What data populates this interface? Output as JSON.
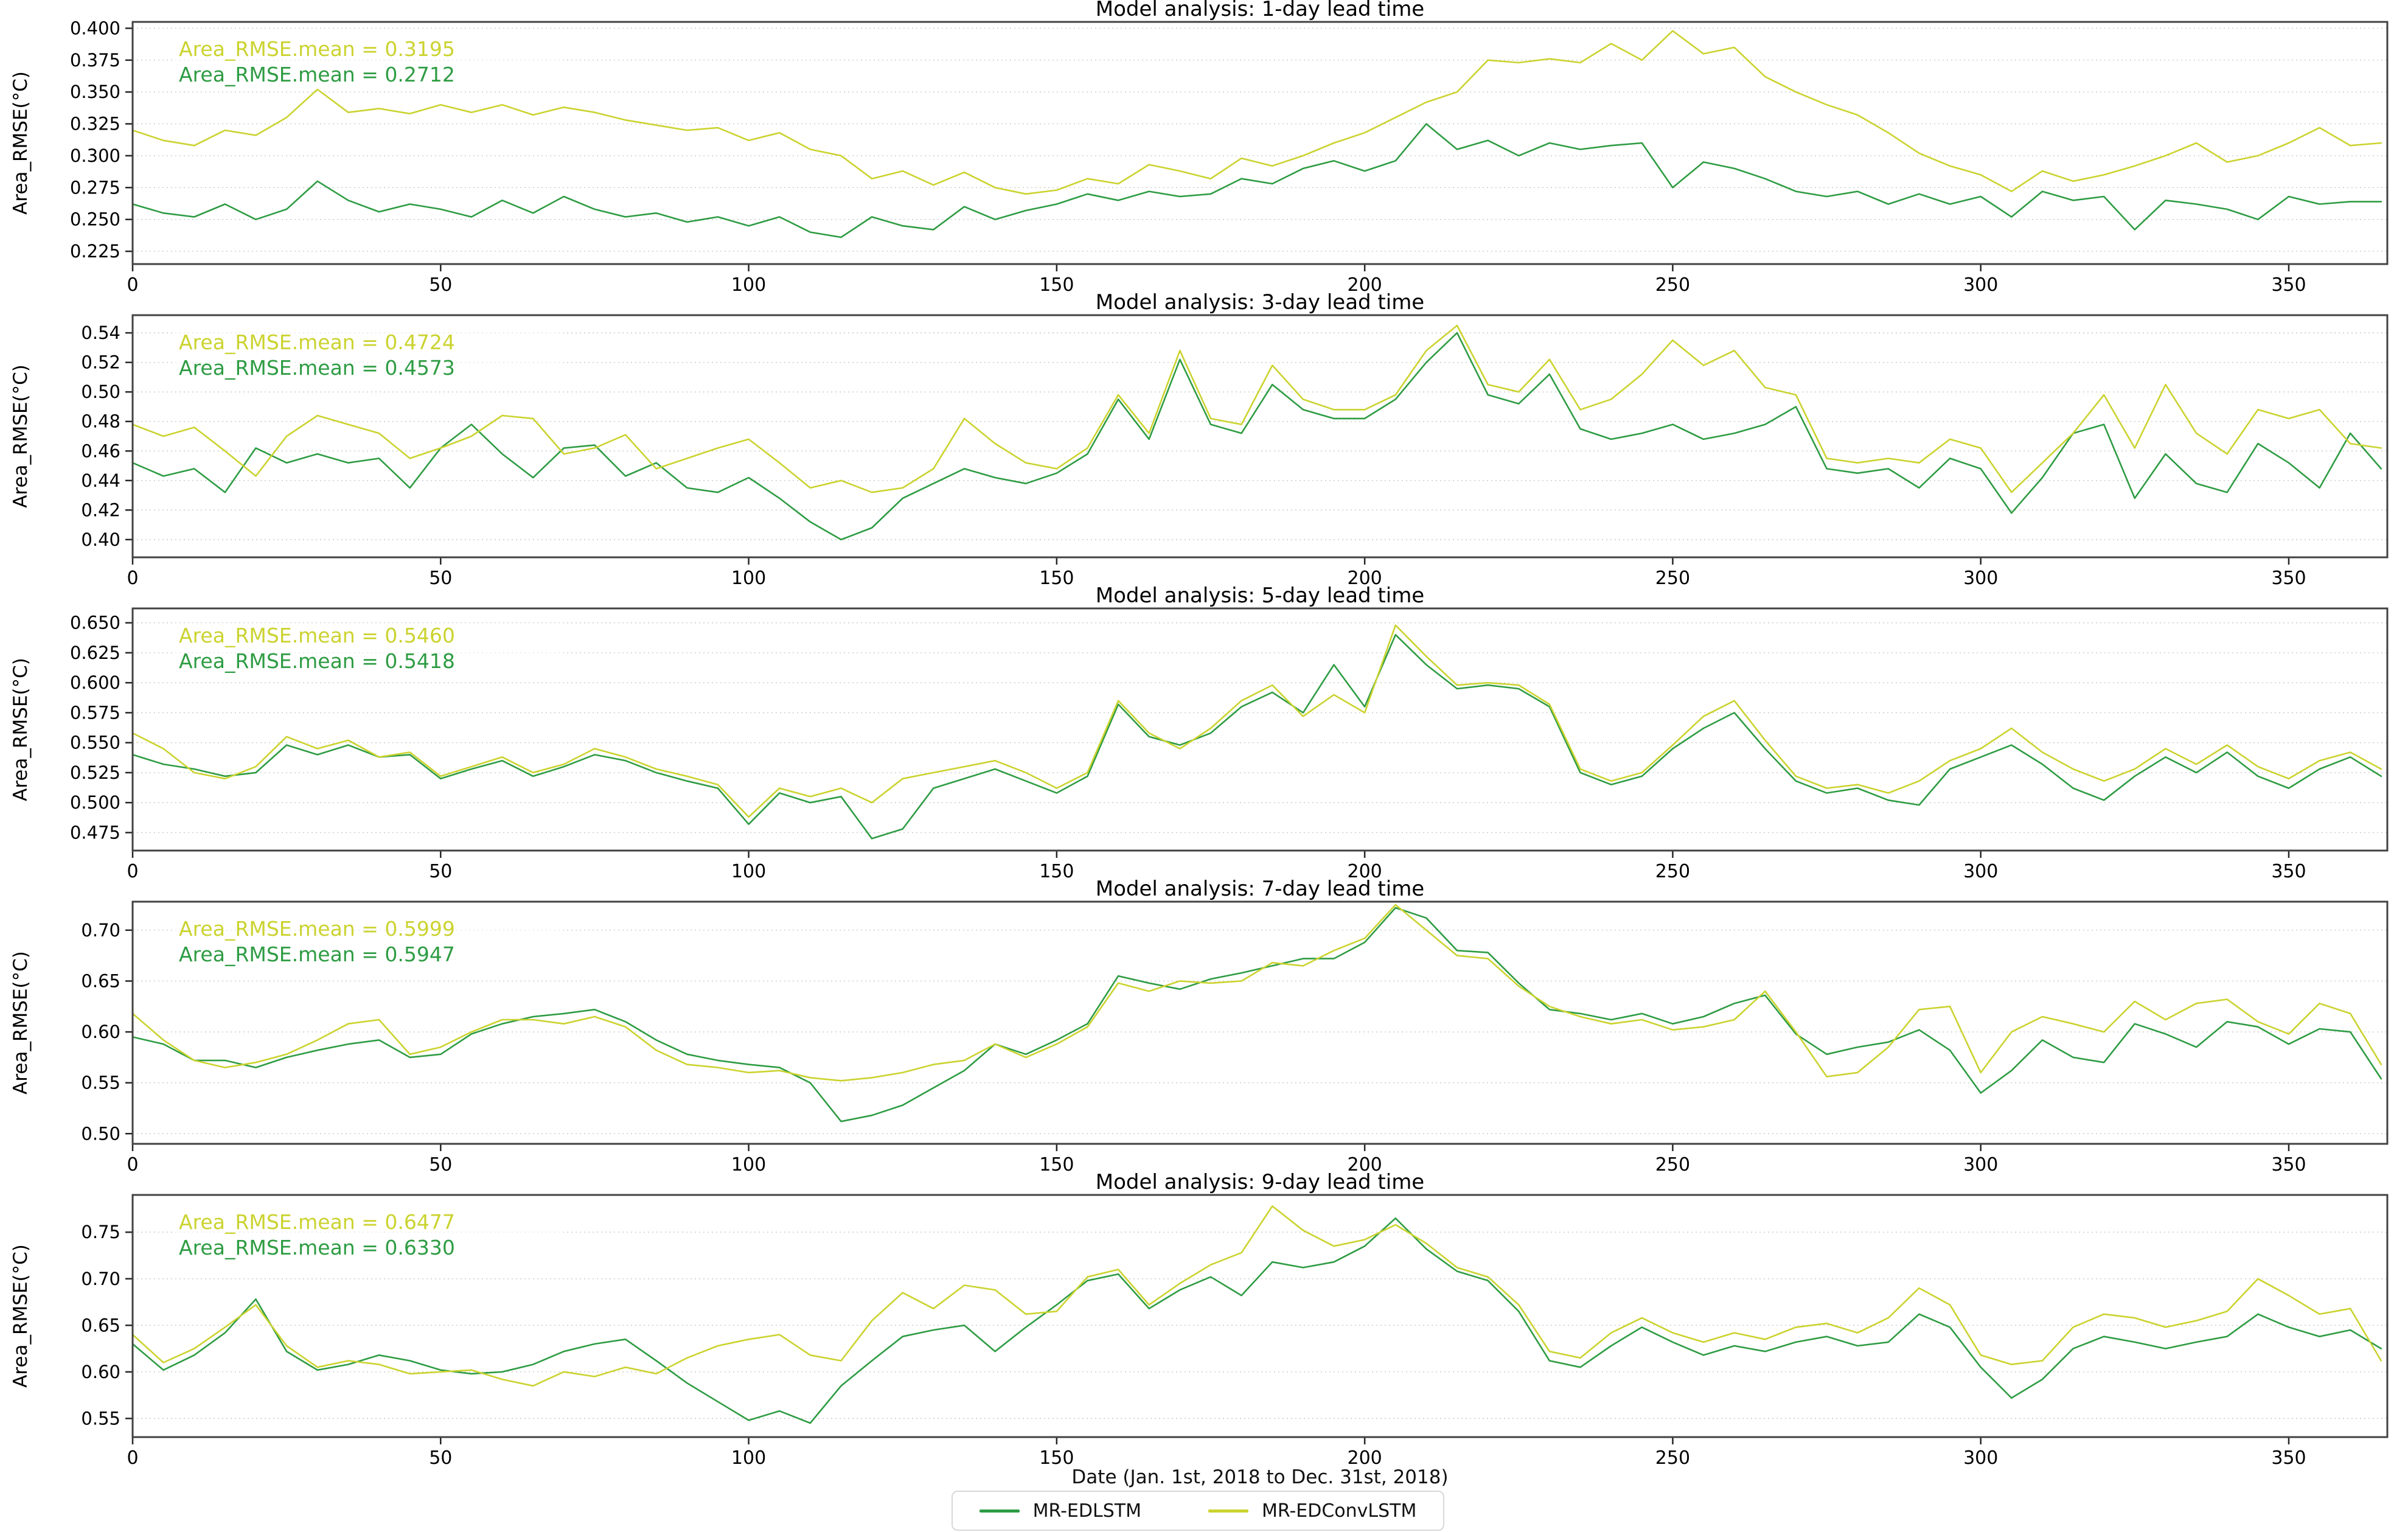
{
  "figure": {
    "xlabel": "Date (Jan. 1st, 2018 to Dec. 31st, 2018)",
    "xlim": [
      0,
      366
    ],
    "x_ticks": [
      0,
      50,
      100,
      150,
      200,
      250,
      300,
      350
    ],
    "grid": true,
    "legend_position": "bottom center",
    "colors": {
      "mr_edlstm": "#2e9c43",
      "mr_edconvlstm": "#cbd32f",
      "axis": "#424242",
      "gridline": "#c8c8c8",
      "text": "#111111"
    },
    "legend": [
      {
        "label": "MR-EDLSTM",
        "color_key": "mr_edlstm"
      },
      {
        "label": "MR-EDConvLSTM",
        "color_key": "mr_edconvlstm"
      }
    ]
  },
  "chart_data": [
    {
      "type": "line",
      "title": "Model analysis: 1-day lead time",
      "ylabel": "Area_RMSE(°C)",
      "ylim": [
        0.215,
        0.405
      ],
      "yticks": [
        0.225,
        0.25,
        0.275,
        0.3,
        0.325,
        0.35,
        0.375,
        0.4
      ],
      "ytick_labels": [
        "0.225",
        "0.250",
        "0.275",
        "0.300",
        "0.325",
        "0.350",
        "0.375",
        "0.400"
      ],
      "annotations": [
        {
          "text": "Area_RMSE.mean = 0.3195",
          "color_key": "mr_edconvlstm"
        },
        {
          "text": "Area_RMSE.mean = 0.2712",
          "color_key": "mr_edlstm"
        }
      ],
      "x_step": 5,
      "series": [
        {
          "name": "MR-EDLSTM",
          "color_key": "mr_edlstm",
          "values": [
            0.262,
            0.255,
            0.252,
            0.262,
            0.25,
            0.258,
            0.28,
            0.265,
            0.256,
            0.262,
            0.258,
            0.252,
            0.265,
            0.255,
            0.268,
            0.258,
            0.252,
            0.255,
            0.248,
            0.252,
            0.245,
            0.252,
            0.24,
            0.236,
            0.252,
            0.245,
            0.242,
            0.26,
            0.25,
            0.257,
            0.262,
            0.27,
            0.265,
            0.272,
            0.268,
            0.27,
            0.282,
            0.278,
            0.29,
            0.296,
            0.288,
            0.296,
            0.325,
            0.305,
            0.312,
            0.3,
            0.31,
            0.305,
            0.308,
            0.31,
            0.275,
            0.295,
            0.29,
            0.282,
            0.272,
            0.268,
            0.272,
            0.262,
            0.27,
            0.262,
            0.268,
            0.252,
            0.272,
            0.265,
            0.268,
            0.242,
            0.265,
            0.262,
            0.258,
            0.25,
            0.268,
            0.262,
            0.264,
            0.264
          ]
        },
        {
          "name": "MR-EDConvLSTM",
          "color_key": "mr_edconvlstm",
          "values": [
            0.32,
            0.312,
            0.308,
            0.32,
            0.316,
            0.33,
            0.352,
            0.334,
            0.337,
            0.333,
            0.34,
            0.334,
            0.34,
            0.332,
            0.338,
            0.334,
            0.328,
            0.324,
            0.32,
            0.322,
            0.312,
            0.318,
            0.305,
            0.3,
            0.282,
            0.288,
            0.277,
            0.287,
            0.275,
            0.27,
            0.273,
            0.282,
            0.278,
            0.293,
            0.288,
            0.282,
            0.298,
            0.292,
            0.3,
            0.31,
            0.318,
            0.33,
            0.342,
            0.35,
            0.375,
            0.373,
            0.376,
            0.373,
            0.388,
            0.375,
            0.398,
            0.38,
            0.385,
            0.362,
            0.35,
            0.34,
            0.332,
            0.318,
            0.302,
            0.292,
            0.285,
            0.272,
            0.288,
            0.28,
            0.285,
            0.292,
            0.3,
            0.31,
            0.295,
            0.3,
            0.31,
            0.322,
            0.308,
            0.31
          ]
        }
      ]
    },
    {
      "type": "line",
      "title": "Model analysis: 3-day lead time",
      "ylabel": "Area_RMSE(°C)",
      "ylim": [
        0.388,
        0.552
      ],
      "yticks": [
        0.4,
        0.42,
        0.44,
        0.46,
        0.48,
        0.5,
        0.52,
        0.54
      ],
      "ytick_labels": [
        "0.40",
        "0.42",
        "0.44",
        "0.46",
        "0.48",
        "0.50",
        "0.52",
        "0.54"
      ],
      "annotations": [
        {
          "text": "Area_RMSE.mean = 0.4724",
          "color_key": "mr_edconvlstm"
        },
        {
          "text": "Area_RMSE.mean = 0.4573",
          "color_key": "mr_edlstm"
        }
      ],
      "x_step": 5,
      "series": [
        {
          "name": "MR-EDLSTM",
          "color_key": "mr_edlstm",
          "values": [
            0.452,
            0.443,
            0.448,
            0.432,
            0.462,
            0.452,
            0.458,
            0.452,
            0.455,
            0.435,
            0.462,
            0.478,
            0.458,
            0.442,
            0.462,
            0.464,
            0.443,
            0.452,
            0.435,
            0.432,
            0.442,
            0.428,
            0.412,
            0.4,
            0.408,
            0.428,
            0.438,
            0.448,
            0.442,
            0.438,
            0.445,
            0.458,
            0.495,
            0.468,
            0.522,
            0.478,
            0.472,
            0.505,
            0.488,
            0.482,
            0.482,
            0.495,
            0.52,
            0.54,
            0.498,
            0.492,
            0.512,
            0.475,
            0.468,
            0.472,
            0.478,
            0.468,
            0.472,
            0.478,
            0.49,
            0.448,
            0.445,
            0.448,
            0.435,
            0.455,
            0.448,
            0.418,
            0.442,
            0.472,
            0.478,
            0.428,
            0.458,
            0.438,
            0.432,
            0.465,
            0.452,
            0.435,
            0.472,
            0.448
          ]
        },
        {
          "name": "MR-EDConvLSTM",
          "color_key": "mr_edconvlstm",
          "values": [
            0.478,
            0.47,
            0.476,
            0.46,
            0.443,
            0.47,
            0.484,
            0.478,
            0.472,
            0.455,
            0.462,
            0.47,
            0.484,
            0.482,
            0.458,
            0.462,
            0.471,
            0.448,
            0.455,
            0.462,
            0.468,
            0.452,
            0.435,
            0.44,
            0.432,
            0.435,
            0.448,
            0.482,
            0.465,
            0.452,
            0.448,
            0.462,
            0.498,
            0.472,
            0.528,
            0.482,
            0.478,
            0.518,
            0.495,
            0.488,
            0.488,
            0.498,
            0.528,
            0.545,
            0.505,
            0.5,
            0.522,
            0.488,
            0.495,
            0.512,
            0.535,
            0.518,
            0.528,
            0.503,
            0.498,
            0.455,
            0.452,
            0.455,
            0.452,
            0.468,
            0.462,
            0.432,
            0.452,
            0.472,
            0.498,
            0.462,
            0.505,
            0.472,
            0.458,
            0.488,
            0.482,
            0.488,
            0.465,
            0.462
          ]
        }
      ]
    },
    {
      "type": "line",
      "title": "Model analysis: 5-day lead time",
      "ylabel": "Area_RMSE(°C)",
      "ylim": [
        0.46,
        0.662
      ],
      "yticks": [
        0.475,
        0.5,
        0.525,
        0.55,
        0.575,
        0.6,
        0.625,
        0.65
      ],
      "ytick_labels": [
        "0.475",
        "0.500",
        "0.525",
        "0.550",
        "0.575",
        "0.600",
        "0.625",
        "0.650"
      ],
      "annotations": [
        {
          "text": "Area_RMSE.mean = 0.5460",
          "color_key": "mr_edconvlstm"
        },
        {
          "text": "Area_RMSE.mean = 0.5418",
          "color_key": "mr_edlstm"
        }
      ],
      "x_step": 5,
      "series": [
        {
          "name": "MR-EDLSTM",
          "color_key": "mr_edlstm",
          "values": [
            0.54,
            0.532,
            0.528,
            0.522,
            0.525,
            0.548,
            0.54,
            0.548,
            0.538,
            0.54,
            0.52,
            0.528,
            0.535,
            0.522,
            0.53,
            0.54,
            0.535,
            0.525,
            0.518,
            0.512,
            0.482,
            0.508,
            0.5,
            0.505,
            0.47,
            0.478,
            0.512,
            0.52,
            0.528,
            0.518,
            0.508,
            0.522,
            0.582,
            0.555,
            0.548,
            0.558,
            0.58,
            0.592,
            0.575,
            0.615,
            0.58,
            0.64,
            0.615,
            0.595,
            0.598,
            0.595,
            0.58,
            0.525,
            0.515,
            0.522,
            0.545,
            0.562,
            0.575,
            0.545,
            0.518,
            0.508,
            0.512,
            0.502,
            0.498,
            0.528,
            0.538,
            0.548,
            0.532,
            0.512,
            0.502,
            0.522,
            0.538,
            0.525,
            0.542,
            0.522,
            0.512,
            0.528,
            0.538,
            0.522
          ]
        },
        {
          "name": "MR-EDConvLSTM",
          "color_key": "mr_edconvlstm",
          "values": [
            0.558,
            0.545,
            0.525,
            0.52,
            0.53,
            0.555,
            0.545,
            0.552,
            0.538,
            0.542,
            0.522,
            0.53,
            0.538,
            0.525,
            0.532,
            0.545,
            0.538,
            0.528,
            0.522,
            0.515,
            0.488,
            0.512,
            0.505,
            0.512,
            0.5,
            0.52,
            0.525,
            0.53,
            0.535,
            0.525,
            0.512,
            0.525,
            0.585,
            0.558,
            0.545,
            0.562,
            0.585,
            0.598,
            0.572,
            0.59,
            0.575,
            0.648,
            0.622,
            0.598,
            0.6,
            0.598,
            0.582,
            0.528,
            0.518,
            0.525,
            0.548,
            0.572,
            0.585,
            0.552,
            0.522,
            0.512,
            0.515,
            0.508,
            0.518,
            0.535,
            0.545,
            0.562,
            0.542,
            0.528,
            0.518,
            0.528,
            0.545,
            0.532,
            0.548,
            0.53,
            0.52,
            0.535,
            0.542,
            0.528
          ]
        }
      ]
    },
    {
      "type": "line",
      "title": "Model analysis: 7-day lead time",
      "ylabel": "Area_RMSE(°C)",
      "ylim": [
        0.49,
        0.728
      ],
      "yticks": [
        0.5,
        0.55,
        0.6,
        0.65,
        0.7
      ],
      "ytick_labels": [
        "0.50",
        "0.55",
        "0.60",
        "0.65",
        "0.70"
      ],
      "annotations": [
        {
          "text": "Area_RMSE.mean = 0.5999",
          "color_key": "mr_edconvlstm"
        },
        {
          "text": "Area_RMSE.mean = 0.5947",
          "color_key": "mr_edlstm"
        }
      ],
      "x_step": 5,
      "series": [
        {
          "name": "MR-EDLSTM",
          "color_key": "mr_edlstm",
          "values": [
            0.595,
            0.588,
            0.572,
            0.572,
            0.565,
            0.575,
            0.582,
            0.588,
            0.592,
            0.575,
            0.578,
            0.598,
            0.608,
            0.615,
            0.618,
            0.622,
            0.61,
            0.592,
            0.578,
            0.572,
            0.568,
            0.565,
            0.55,
            0.512,
            0.518,
            0.528,
            0.545,
            0.562,
            0.588,
            0.578,
            0.592,
            0.608,
            0.655,
            0.648,
            0.642,
            0.652,
            0.658,
            0.665,
            0.672,
            0.672,
            0.688,
            0.722,
            0.712,
            0.68,
            0.678,
            0.648,
            0.622,
            0.618,
            0.612,
            0.618,
            0.608,
            0.615,
            0.628,
            0.636,
            0.598,
            0.578,
            0.585,
            0.59,
            0.602,
            0.582,
            0.54,
            0.562,
            0.592,
            0.575,
            0.57,
            0.608,
            0.598,
            0.585,
            0.61,
            0.605,
            0.588,
            0.603,
            0.6,
            0.554
          ]
        },
        {
          "name": "MR-EDConvLSTM",
          "color_key": "mr_edconvlstm",
          "values": [
            0.618,
            0.592,
            0.572,
            0.565,
            0.57,
            0.578,
            0.592,
            0.608,
            0.612,
            0.578,
            0.585,
            0.6,
            0.612,
            0.612,
            0.608,
            0.615,
            0.605,
            0.582,
            0.568,
            0.565,
            0.56,
            0.562,
            0.555,
            0.552,
            0.555,
            0.56,
            0.568,
            0.572,
            0.588,
            0.575,
            0.588,
            0.605,
            0.648,
            0.64,
            0.65,
            0.648,
            0.65,
            0.668,
            0.665,
            0.68,
            0.692,
            0.725,
            0.7,
            0.675,
            0.672,
            0.645,
            0.625,
            0.615,
            0.608,
            0.612,
            0.602,
            0.605,
            0.612,
            0.64,
            0.6,
            0.556,
            0.56,
            0.585,
            0.622,
            0.625,
            0.56,
            0.6,
            0.615,
            0.608,
            0.6,
            0.63,
            0.612,
            0.628,
            0.632,
            0.61,
            0.598,
            0.628,
            0.618,
            0.568
          ]
        }
      ]
    },
    {
      "type": "line",
      "title": "Model analysis: 9-day lead time",
      "ylabel": "Area_RMSE(°C)",
      "ylim": [
        0.53,
        0.79
      ],
      "yticks": [
        0.55,
        0.6,
        0.65,
        0.7,
        0.75
      ],
      "ytick_labels": [
        "0.55",
        "0.60",
        "0.65",
        "0.70",
        "0.75"
      ],
      "annotations": [
        {
          "text": "Area_RMSE.mean = 0.6477",
          "color_key": "mr_edconvlstm"
        },
        {
          "text": "Area_RMSE.mean = 0.6330",
          "color_key": "mr_edlstm"
        }
      ],
      "x_step": 5,
      "series": [
        {
          "name": "MR-EDLSTM",
          "color_key": "mr_edlstm",
          "values": [
            0.63,
            0.602,
            0.618,
            0.642,
            0.678,
            0.622,
            0.602,
            0.608,
            0.618,
            0.612,
            0.602,
            0.598,
            0.6,
            0.608,
            0.622,
            0.63,
            0.635,
            0.612,
            0.588,
            0.568,
            0.548,
            0.558,
            0.545,
            0.585,
            0.612,
            0.638,
            0.645,
            0.65,
            0.622,
            0.648,
            0.672,
            0.698,
            0.705,
            0.668,
            0.688,
            0.702,
            0.682,
            0.718,
            0.712,
            0.718,
            0.735,
            0.765,
            0.732,
            0.708,
            0.698,
            0.665,
            0.612,
            0.605,
            0.628,
            0.648,
            0.632,
            0.618,
            0.628,
            0.622,
            0.632,
            0.638,
            0.628,
            0.632,
            0.662,
            0.648,
            0.605,
            0.572,
            0.592,
            0.625,
            0.638,
            0.632,
            0.625,
            0.632,
            0.638,
            0.662,
            0.648,
            0.638,
            0.645,
            0.625
          ]
        },
        {
          "name": "MR-EDConvLSTM",
          "color_key": "mr_edconvlstm",
          "values": [
            0.64,
            0.61,
            0.625,
            0.648,
            0.672,
            0.628,
            0.605,
            0.612,
            0.608,
            0.598,
            0.6,
            0.602,
            0.592,
            0.585,
            0.6,
            0.595,
            0.605,
            0.598,
            0.615,
            0.628,
            0.635,
            0.64,
            0.618,
            0.612,
            0.655,
            0.685,
            0.668,
            0.693,
            0.688,
            0.662,
            0.665,
            0.702,
            0.71,
            0.672,
            0.695,
            0.715,
            0.728,
            0.778,
            0.752,
            0.735,
            0.742,
            0.758,
            0.738,
            0.712,
            0.702,
            0.672,
            0.622,
            0.615,
            0.642,
            0.658,
            0.642,
            0.632,
            0.642,
            0.635,
            0.648,
            0.652,
            0.642,
            0.658,
            0.69,
            0.672,
            0.618,
            0.608,
            0.612,
            0.648,
            0.662,
            0.658,
            0.648,
            0.655,
            0.665,
            0.7,
            0.682,
            0.662,
            0.668,
            0.612
          ]
        }
      ]
    }
  ]
}
